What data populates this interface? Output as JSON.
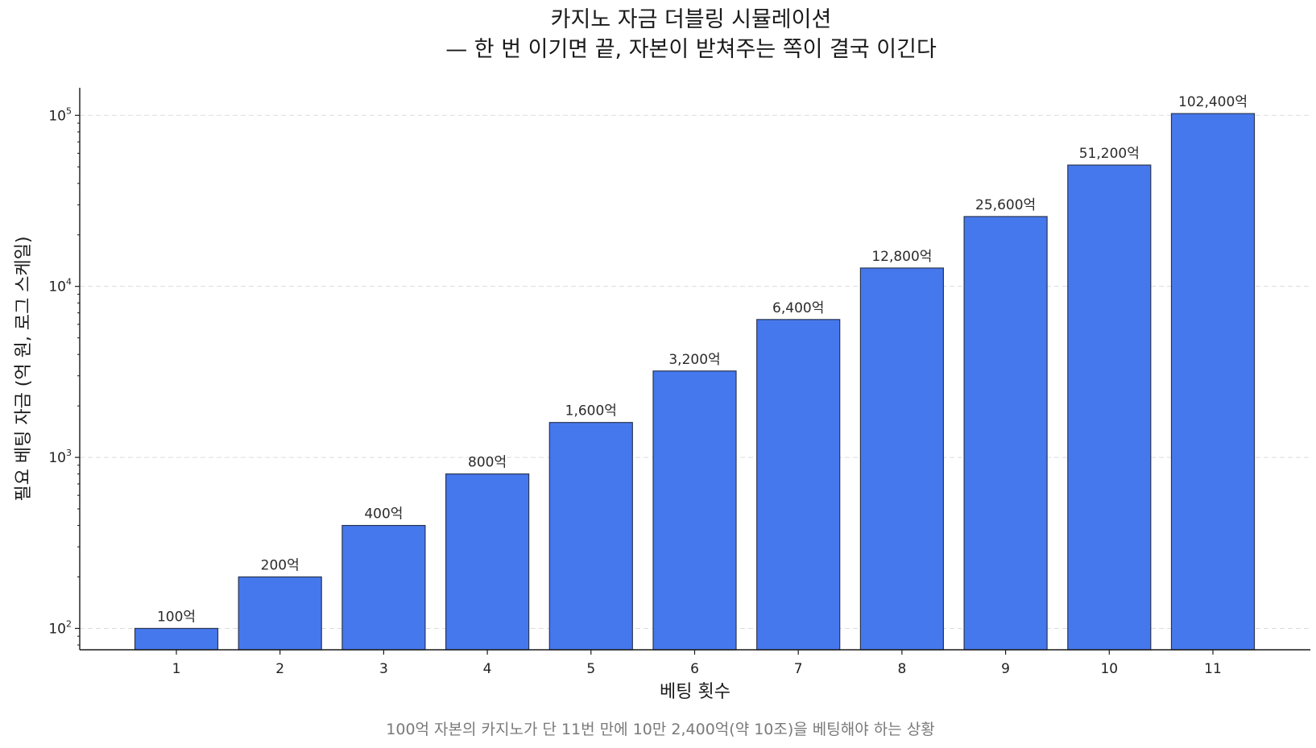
{
  "chart_data": {
    "type": "bar",
    "title_lines": [
      "카지노 자금 더블링 시뮬레이션",
      "— 한 번 이기면 끝, 자본이 받쳐주는 쪽이 결국 이긴다"
    ],
    "xlabel": "베팅 횟수",
    "ylabel": "필요 베팅 자금 (억 원, 로그 스케일)",
    "y_scale": "log",
    "ylim": [
      75,
      145000
    ],
    "y_ticks": [
      {
        "base": "10",
        "exp": "2"
      },
      {
        "base": "10",
        "exp": "3"
      },
      {
        "base": "10",
        "exp": "4"
      },
      {
        "base": "10",
        "exp": "5"
      }
    ],
    "grid": "horizontal dashed",
    "categories": [
      "1",
      "2",
      "3",
      "4",
      "5",
      "6",
      "7",
      "8",
      "9",
      "10",
      "11"
    ],
    "values": [
      100,
      200,
      400,
      800,
      1600,
      3200,
      6400,
      12800,
      25600,
      51200,
      102400
    ],
    "data_labels": [
      "100억",
      "200억",
      "400억",
      "800억",
      "1,600억",
      "3,200억",
      "6,400억",
      "12,800억",
      "25,600억",
      "51,200억",
      "102,400억"
    ],
    "bar_color": "#4678ed",
    "bar_edge_color": "#2a3550",
    "caption": "100억 자본의 카지노가 단 11번 만에 10만 2,400억(약 10조)을 베팅해야 하는 상황"
  }
}
